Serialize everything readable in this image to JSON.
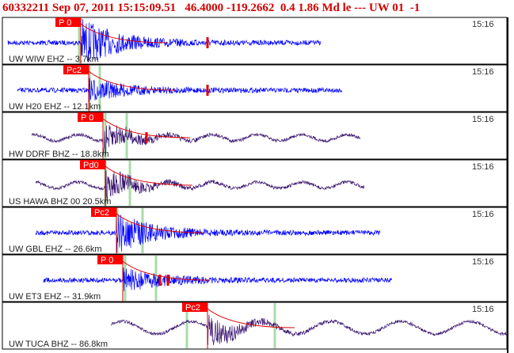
{
  "header": {
    "title": "60332211 Sep 07, 2011 15:15:09.51   46.4000 -119.2662  0.4 1.86 Md le --- UW 01  -1"
  },
  "panels": [
    {
      "station": "UW WIW EHZ -- 3.7km",
      "time": "15:16",
      "pick": "P 0"
    },
    {
      "station": "UW H20 EHZ -- 12.1km",
      "time": "15:16",
      "pick": "Pc2"
    },
    {
      "station": "HW DDRF BHZ -- 18.8km",
      "time": "15:16",
      "pick": "P 0"
    },
    {
      "station": "US HAWA BHZ 00 20.5km",
      "time": "15:16",
      "pick": "Pd0"
    },
    {
      "station": "UW GBL EHZ -- 26.6km",
      "time": "15:16",
      "pick": "Pc2"
    },
    {
      "station": "UW ET3 EHZ -- 31.9km",
      "time": "15:16",
      "pick": "P 0"
    },
    {
      "station": "UW TUCA BHZ -- 86.8km",
      "time": "15:16",
      "pick": "Pc2"
    }
  ]
}
